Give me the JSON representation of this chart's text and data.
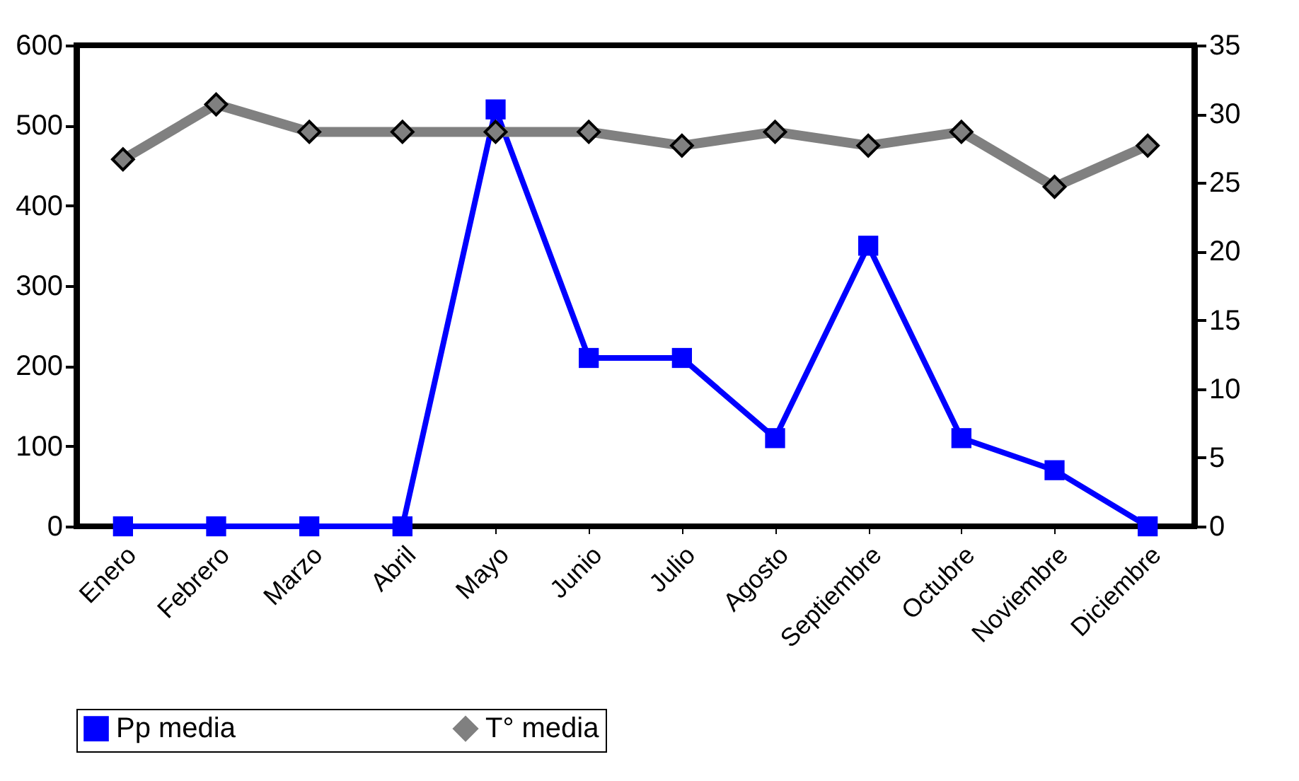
{
  "chart_data": {
    "type": "line",
    "categories": [
      "Enero",
      "Febrero",
      "Marzo",
      "Abril",
      "Mayo",
      "Junio",
      "Julio",
      "Agosto",
      "Septiembre",
      "Octubre",
      "Noviembre",
      "Diciembre"
    ],
    "series": [
      {
        "name": "Pp media",
        "color": "#0000ff",
        "marker": "square",
        "values": [
          0,
          0,
          0,
          0,
          520,
          210,
          210,
          110,
          350,
          110,
          70,
          0
        ]
      },
      {
        "name": "T° media",
        "color": "#808080",
        "marker": "diamond",
        "axis": "y2",
        "values": [
          26.7,
          30.7,
          28.7,
          28.7,
          28.7,
          28.7,
          27.7,
          28.7,
          27.7,
          28.7,
          24.7,
          27.7
        ]
      }
    ],
    "ylim": [
      0,
      600
    ],
    "yticks": [
      0,
      100,
      200,
      300,
      400,
      500,
      600
    ],
    "y2lim": [
      0,
      35
    ],
    "y2ticks": [
      0,
      5,
      10,
      15,
      20,
      25,
      30,
      35
    ],
    "legend": "bottom"
  }
}
